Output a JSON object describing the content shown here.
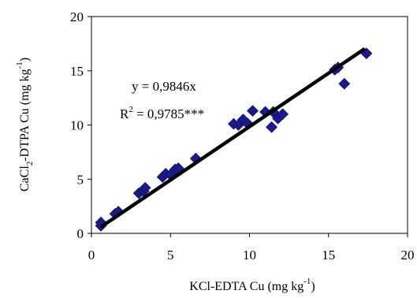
{
  "chart_data": {
    "type": "scatter",
    "title": "",
    "xlabel": {
      "base": "KCl-EDTA Cu (mg kg",
      "sup": "-1",
      "tail": ")"
    },
    "ylabel": {
      "pre": "CaCl",
      "sub": "2",
      "mid": "-DTPA Cu (mg kg",
      "sup": "-1",
      "tail": ")"
    },
    "xlim": [
      0,
      20
    ],
    "ylim": [
      0,
      20
    ],
    "xticks": [
      "0",
      "5",
      "10",
      "15",
      "20"
    ],
    "yticks": [
      "0",
      "5",
      "10",
      "15",
      "20"
    ],
    "grid": false,
    "legend": "none",
    "marker_color": "#1a1a8c",
    "line_color": "#000000",
    "series": [
      {
        "marker": "diamond",
        "points": [
          [
            0.6,
            0.7
          ],
          [
            0.6,
            1.0
          ],
          [
            1.5,
            1.8
          ],
          [
            1.7,
            2.0
          ],
          [
            3.0,
            3.7
          ],
          [
            3.3,
            3.9
          ],
          [
            3.4,
            4.2
          ],
          [
            4.5,
            5.2
          ],
          [
            4.7,
            5.5
          ],
          [
            5.0,
            5.4
          ],
          [
            5.3,
            5.9
          ],
          [
            5.5,
            6.0
          ],
          [
            6.6,
            6.9
          ],
          [
            9.0,
            10.1
          ],
          [
            9.3,
            10.0
          ],
          [
            9.6,
            10.5
          ],
          [
            9.9,
            10.1
          ],
          [
            10.2,
            11.3
          ],
          [
            11.0,
            11.2
          ],
          [
            11.4,
            9.8
          ],
          [
            11.5,
            11.2
          ],
          [
            11.8,
            10.6
          ],
          [
            12.1,
            11.0
          ],
          [
            15.4,
            15.1
          ],
          [
            15.6,
            15.3
          ],
          [
            16.0,
            13.8
          ],
          [
            17.4,
            16.6
          ]
        ]
      }
    ],
    "fit_line": {
      "slope": 0.9846,
      "x_range": [
        0.6,
        17.3
      ]
    },
    "annotations": {
      "equation": "y = 0,9846x",
      "r2_prefix": "R",
      "r2_sup": "2",
      "r2_value": " = 0,9785***"
    }
  }
}
